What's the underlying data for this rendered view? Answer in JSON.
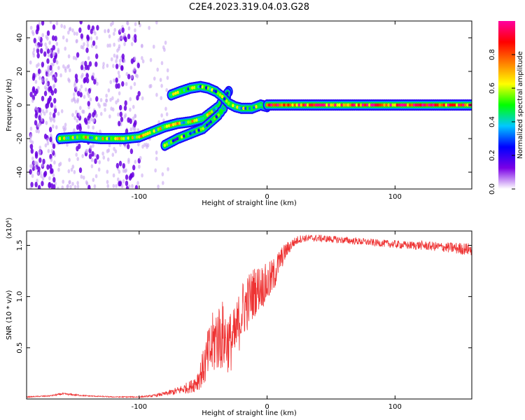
{
  "title": "C2E4.2023.319.04.03.G28",
  "chart_data": [
    {
      "type": "heatmap",
      "title": "C2E4.2023.319.04.03.G28",
      "xlabel": "Height of straight line (km)",
      "ylabel": "Frequency (Hz)",
      "xlim": [
        -188,
        160
      ],
      "ylim": [
        -50,
        50
      ],
      "xticks": [
        -100,
        0,
        100
      ],
      "yticks": [
        -40,
        -20,
        0,
        20,
        40
      ],
      "colorbar": {
        "label": "Normalized spectral amplitude",
        "range": [
          0,
          1
        ],
        "ticks": [
          0.0,
          0.2,
          0.4,
          0.6,
          0.8
        ],
        "colormap": [
          "#ffffff",
          "#7a00e6",
          "#0000ff",
          "#00c8ff",
          "#00ff00",
          "#ffff00",
          "#ff7f00",
          "#ff0000",
          "#ff00a0"
        ]
      },
      "traces": [
        {
          "points": [
            [
              -162,
              -20
            ],
            [
              -145,
              -19
            ],
            [
              -130,
              -20
            ],
            [
              -112,
              -20
            ],
            [
              -100,
              -19
            ],
            [
              -90,
              -16
            ],
            [
              -80,
              -13
            ],
            [
              -70,
              -11
            ],
            [
              -60,
              -10
            ],
            [
              -50,
              -8
            ],
            [
              -45,
              -5
            ],
            [
              -38,
              -1
            ],
            [
              -33,
              5
            ],
            [
              -30,
              8
            ]
          ],
          "amplitude": 0.55
        },
        {
          "points": [
            [
              -80,
              -24
            ],
            [
              -70,
              -20
            ],
            [
              -60,
              -17
            ],
            [
              -50,
              -14
            ],
            [
              -44,
              -10
            ],
            [
              -38,
              -6
            ],
            [
              -34,
              -2
            ],
            [
              -32,
              3
            ],
            [
              -31,
              7
            ]
          ],
          "amplitude": 0.4
        },
        {
          "points": [
            [
              -75,
              6
            ],
            [
              -68,
              8
            ],
            [
              -60,
              10
            ],
            [
              -52,
              11
            ],
            [
              -46,
              10
            ],
            [
              -40,
              8
            ],
            [
              -35,
              5
            ],
            [
              -30,
              1
            ],
            [
              -25,
              -1
            ],
            [
              -20,
              -2
            ],
            [
              -12,
              -2
            ],
            [
              -5,
              0
            ],
            [
              0,
              -1
            ]
          ],
          "amplitude": 0.45
        },
        {
          "points": [
            [
              0,
              0
            ],
            [
              20,
              0
            ],
            [
              40,
              0
            ],
            [
              60,
              0
            ],
            [
              80,
              0
            ],
            [
              100,
              0
            ],
            [
              120,
              0
            ],
            [
              140,
              0
            ],
            [
              160,
              0
            ]
          ],
          "amplitude": 0.85
        }
      ]
    },
    {
      "type": "line",
      "xlabel": "Height of straight line (km)",
      "ylabel": "SNR (10 * v/v)",
      "y_multiplier": "(x10⁴)",
      "xlim": [
        -188,
        160
      ],
      "ylim": [
        0,
        1.64
      ],
      "xticks": [
        -100,
        0,
        100
      ],
      "yticks": [
        0.5,
        1.0,
        1.5
      ],
      "color": "#ee3333",
      "series": [
        {
          "x": [
            -188,
            -170,
            -160,
            -150,
            -140,
            -120,
            -100,
            -90,
            -80,
            -70,
            -60,
            -55,
            -50,
            -45,
            -40,
            -35,
            -30,
            -25,
            -20,
            -15,
            -10,
            -5,
            0,
            5,
            10,
            15,
            20,
            25,
            30,
            40,
            50,
            60,
            70,
            80,
            90,
            100,
            110,
            120,
            130,
            140,
            150,
            160
          ],
          "values": [
            0.02,
            0.03,
            0.05,
            0.04,
            0.03,
            0.02,
            0.02,
            0.03,
            0.05,
            0.08,
            0.12,
            0.17,
            0.3,
            0.45,
            0.6,
            0.62,
            0.55,
            0.6,
            0.85,
            0.95,
            1.05,
            1.1,
            1.12,
            1.2,
            1.35,
            1.45,
            1.52,
            1.56,
            1.57,
            1.57,
            1.56,
            1.55,
            1.54,
            1.53,
            1.52,
            1.51,
            1.5,
            1.5,
            1.49,
            1.48,
            1.47,
            1.46
          ],
          "noise": [
            0.005,
            0.006,
            0.01,
            0.008,
            0.006,
            0.005,
            0.006,
            0.01,
            0.02,
            0.04,
            0.06,
            0.1,
            0.18,
            0.3,
            0.35,
            0.35,
            0.3,
            0.3,
            0.3,
            0.28,
            0.25,
            0.22,
            0.2,
            0.18,
            0.12,
            0.08,
            0.05,
            0.04,
            0.035,
            0.035,
            0.035,
            0.035,
            0.035,
            0.035,
            0.035,
            0.04,
            0.04,
            0.045,
            0.045,
            0.05,
            0.06,
            0.06
          ]
        }
      ]
    }
  ]
}
